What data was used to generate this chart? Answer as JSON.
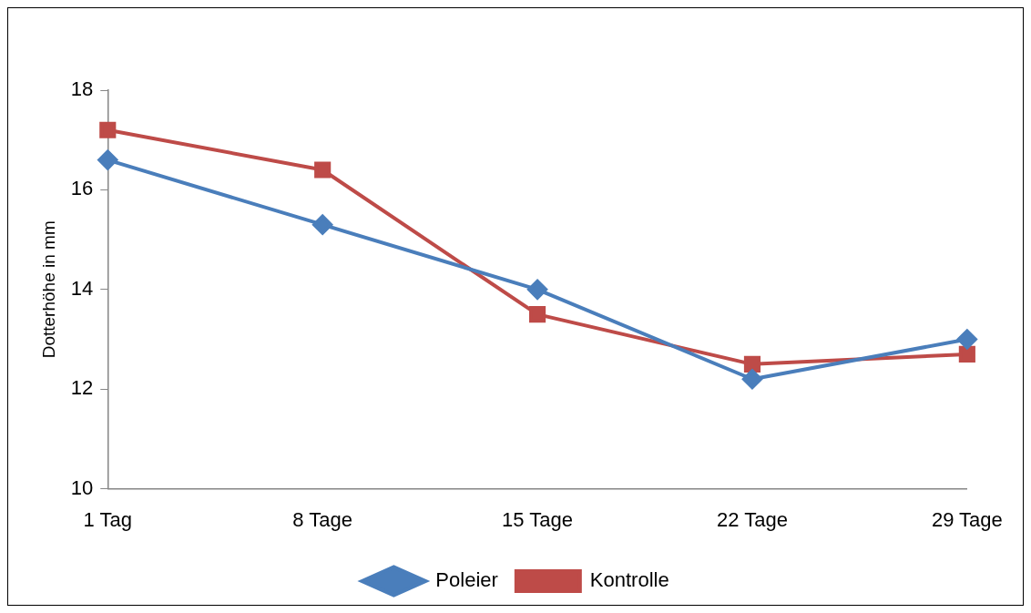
{
  "chart_data": {
    "type": "line",
    "ylabel": "Dotterhöhe in mm",
    "categories": [
      "1 Tag",
      "8 Tage",
      "15 Tage",
      "22 Tage",
      "29 Tage"
    ],
    "series": [
      {
        "name": "Poleier",
        "color": "#4a7ebb",
        "marker": "diamond",
        "values": [
          16.6,
          15.3,
          14.0,
          12.2,
          13.0
        ]
      },
      {
        "name": "Kontrolle",
        "color": "#be4b48",
        "marker": "square",
        "values": [
          17.2,
          16.4,
          13.5,
          12.5,
          12.7
        ]
      }
    ],
    "ylim": [
      10,
      18
    ],
    "yticks": [
      10,
      12,
      14,
      16,
      18
    ],
    "grid": false,
    "legend": "bottom"
  }
}
